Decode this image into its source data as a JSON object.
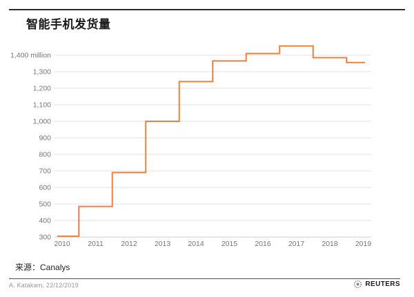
{
  "header": {
    "title": "智能手机发货量"
  },
  "footer": {
    "source_label": "来源：",
    "source_value": "Canalys",
    "credit": "A. Katakam, 22/12/2019",
    "brand": "REUTERS"
  },
  "colors": {
    "line": "#ED803C",
    "grid": "#DFDFDF",
    "axis_bottom": "#CDCDCD",
    "tick_text": "#757575",
    "top_rule": "#2B2B2B",
    "footer_rule": "#4D4D4D",
    "brand_icon": "#8A8A8A"
  },
  "chart_data": {
    "type": "line",
    "subtype": "step",
    "title": "智能手机发货量",
    "xlabel": "",
    "ylabel": "million",
    "x": [
      "2010",
      "2011",
      "2012",
      "2013",
      "2014",
      "2015",
      "2016",
      "2017",
      "2018",
      "2019"
    ],
    "values": [
      305,
      485,
      690,
      1000,
      1240,
      1365,
      1410,
      1455,
      1385,
      1355
    ],
    "ylim": [
      300,
      1460
    ],
    "grid": true,
    "legend": false,
    "yticks": [
      {
        "value": 300,
        "label": "300"
      },
      {
        "value": 400,
        "label": "400"
      },
      {
        "value": 500,
        "label": "500"
      },
      {
        "value": 600,
        "label": "600"
      },
      {
        "value": 700,
        "label": "700"
      },
      {
        "value": 800,
        "label": "800"
      },
      {
        "value": 900,
        "label": "900"
      },
      {
        "value": 1000,
        "label": "1,000"
      },
      {
        "value": 1100,
        "label": "1,100"
      },
      {
        "value": 1200,
        "label": "1,200"
      },
      {
        "value": 1300,
        "label": "1,300"
      },
      {
        "value": 1400,
        "label": "1,400 million"
      }
    ]
  }
}
